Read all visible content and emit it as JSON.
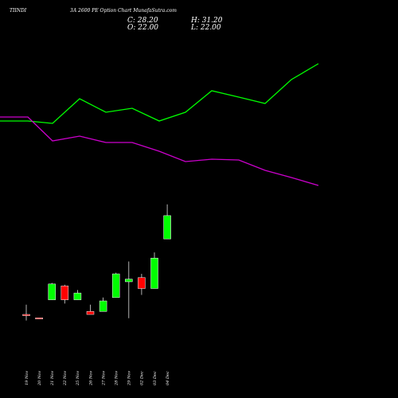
{
  "header": {
    "title_left": "TIINDI",
    "title_right": "3A 2600  PE Option  Chart MunafaSutra.com",
    "close_text": "C: 28.20",
    "high_text": "H: 31.20",
    "open_text": "O: 22.00",
    "low_text": "L: 22.00"
  },
  "colors": {
    "background": "#000000",
    "up_candle": "#00ff00",
    "down_candle": "#ff0000",
    "line_green": "#00ff00",
    "line_magenta": "#cc00cc",
    "text": "#ffffff"
  },
  "chart_data": {
    "type": "candlestick",
    "price_range": [
      0,
      50
    ],
    "categories": [
      "19 Nov",
      "20 Nov",
      "21 Nov",
      "22 Nov",
      "25 Nov",
      "26 Nov",
      "27 Nov",
      "28 Nov",
      "29 Nov",
      "02 Dec",
      "03 Dec",
      "04 Dec"
    ],
    "candles": [
      {
        "date": "19 Nov",
        "open": 1.9,
        "high": 4.5,
        "low": 0.3,
        "close": 1.6
      },
      {
        "date": "20 Nov",
        "open": 1.0,
        "high": 1.0,
        "low": 0.9,
        "close": 0.9
      },
      {
        "date": "21 Nov",
        "open": 5.8,
        "high": 10.3,
        "low": 5.8,
        "close": 10.0
      },
      {
        "date": "22 Nov",
        "open": 9.5,
        "high": 9.8,
        "low": 4.8,
        "close": 5.8
      },
      {
        "date": "25 Nov",
        "open": 5.8,
        "high": 8.4,
        "low": 5.8,
        "close": 7.6
      },
      {
        "date": "26 Nov",
        "open": 2.7,
        "high": 4.5,
        "low": 1.9,
        "close": 1.9
      },
      {
        "date": "27 Nov",
        "open": 2.7,
        "high": 6.4,
        "low": 2.7,
        "close": 5.5
      },
      {
        "date": "28 Nov",
        "open": 6.4,
        "high": 13.0,
        "low": 6.4,
        "close": 12.7
      },
      {
        "date": "29 Nov",
        "open": 10.6,
        "high": 16.0,
        "low": 0.9,
        "close": 11.3
      },
      {
        "date": "02 Dec",
        "open": 11.7,
        "high": 12.7,
        "low": 7.1,
        "close": 8.8
      },
      {
        "date": "03 Dec",
        "open": 8.8,
        "high": 18.4,
        "low": 8.8,
        "close": 16.9
      },
      {
        "date": "04 Dec",
        "open": 22.0,
        "high": 31.2,
        "low": 22.0,
        "close": 28.2
      }
    ],
    "series": [
      {
        "color": "#00ff00",
        "points": [
          [
            0,
            152
          ],
          [
            35,
            152
          ],
          [
            66,
            155
          ],
          [
            100,
            124
          ],
          [
            133,
            141
          ],
          [
            166,
            136
          ],
          [
            200,
            152
          ],
          [
            233,
            141
          ],
          [
            266,
            114
          ],
          [
            300,
            122
          ],
          [
            333,
            130
          ],
          [
            366,
            100
          ],
          [
            400,
            80
          ]
        ]
      },
      {
        "color": "#cc00cc",
        "points": [
          [
            0,
            147
          ],
          [
            35,
            147
          ],
          [
            66,
            177
          ],
          [
            100,
            171
          ],
          [
            133,
            179
          ],
          [
            166,
            179
          ],
          [
            200,
            190
          ],
          [
            233,
            203
          ],
          [
            266,
            200
          ],
          [
            300,
            201
          ],
          [
            333,
            214
          ],
          [
            366,
            223
          ],
          [
            400,
            233
          ]
        ]
      }
    ]
  }
}
